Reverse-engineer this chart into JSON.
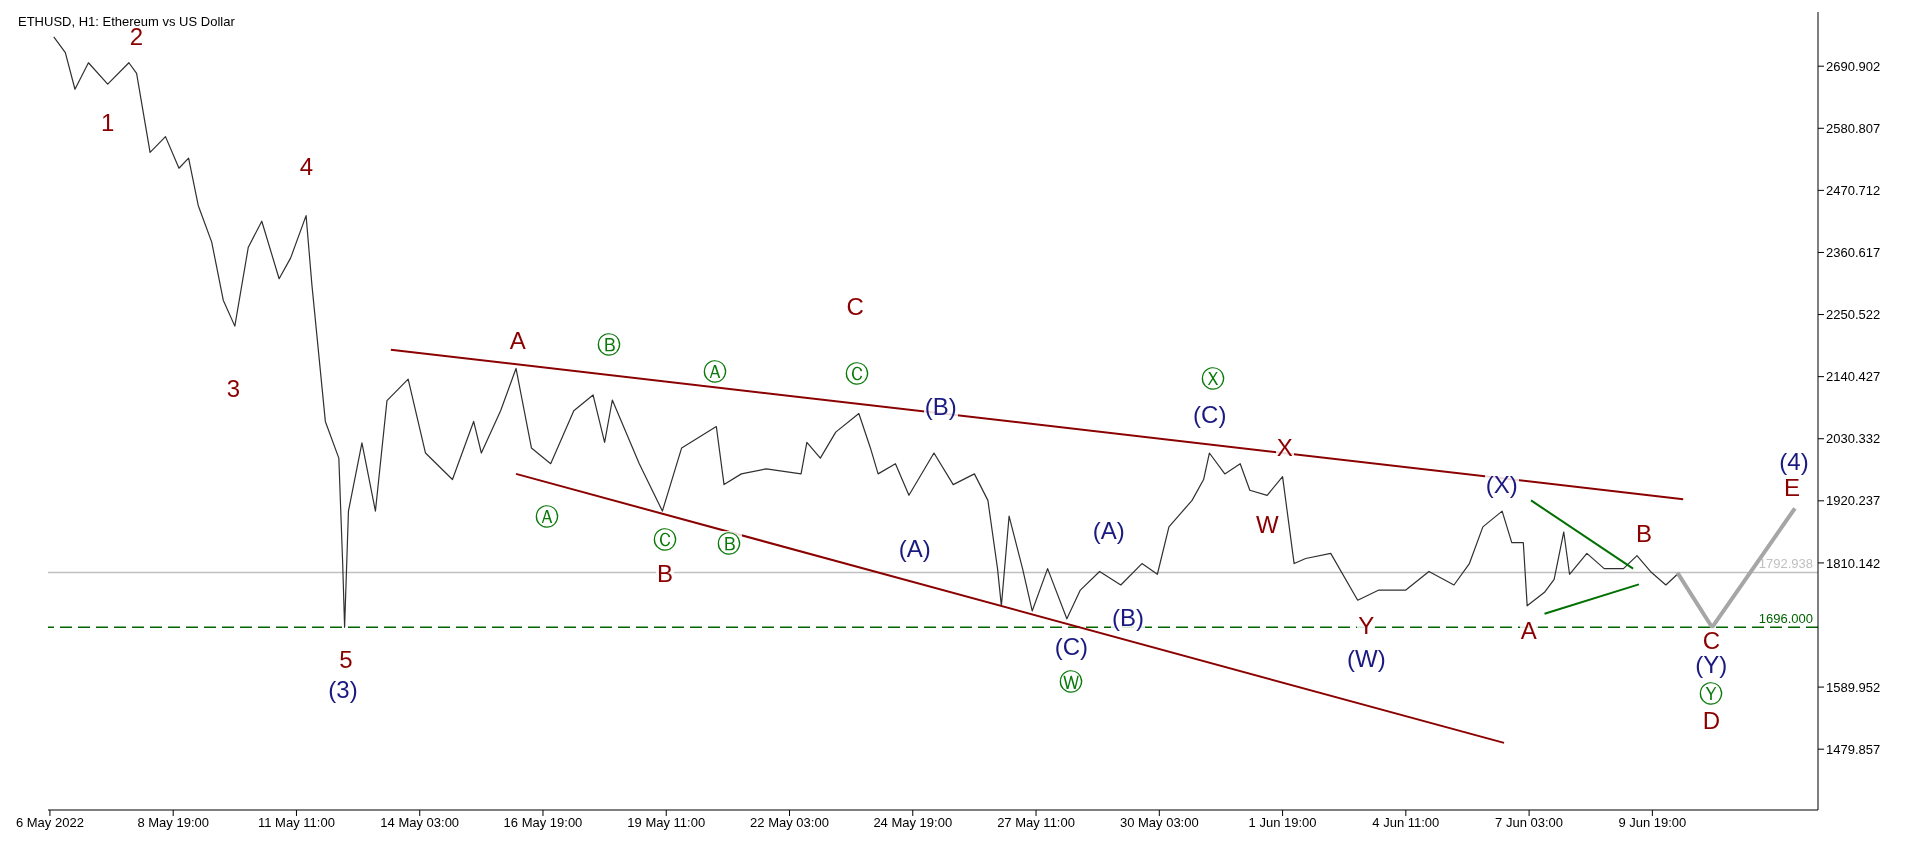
{
  "chart_data": {
    "type": "line",
    "title": "ETHUSD, H1:  Ethereum vs US Dollar",
    "xlim": [
      "2022-05-06T02:00",
      "2022-06-13T09:00"
    ],
    "xticks": [
      {
        "value": "2022-05-06T03:00",
        "label": "6 May 2022"
      },
      {
        "value": "2022-05-08T19:00",
        "label": "8 May 19:00"
      },
      {
        "value": "2022-05-11T11:00",
        "label": "11 May 11:00"
      },
      {
        "value": "2022-05-14T03:00",
        "label": "14 May 03:00"
      },
      {
        "value": "2022-05-16T19:00",
        "label": "16 May 19:00"
      },
      {
        "value": "2022-05-19T11:00",
        "label": "19 May 11:00"
      },
      {
        "value": "2022-05-22T03:00",
        "label": "22 May 03:00"
      },
      {
        "value": "2022-05-24T19:00",
        "label": "24 May 19:00"
      },
      {
        "value": "2022-05-27T11:00",
        "label": "27 May 11:00"
      },
      {
        "value": "2022-05-30T03:00",
        "label": "30 May 03:00"
      },
      {
        "value": "2022-06-01T19:00",
        "label": "1 Jun 19:00"
      },
      {
        "value": "2022-06-04T11:00",
        "label": "4 Jun 11:00"
      },
      {
        "value": "2022-06-07T03:00",
        "label": "7 Jun 03:00"
      },
      {
        "value": "2022-06-09T19:00",
        "label": "9 Jun 19:00"
      }
    ],
    "ylim": [
      1372,
      2787
    ],
    "yticks": [
      1479.857,
      1589.952,
      1810.142,
      1920.237,
      2030.332,
      2140.427,
      2250.522,
      2360.617,
      2470.712,
      2580.807,
      2690.902
    ],
    "marker": "none",
    "series": [
      {
        "color": "#303030",
        "x": [
          "2022-05-06T05:00",
          "2022-05-06T11:00",
          "2022-05-06T16:00",
          "2022-05-06T23:00",
          "2022-05-07T09:00",
          "2022-05-07T20:00",
          "2022-05-08T00:00",
          "2022-05-08T07:00",
          "2022-05-08T15:00",
          "2022-05-08T22:00",
          "2022-05-09T03:00",
          "2022-05-09T08:00",
          "2022-05-09T15:00",
          "2022-05-09T21:00",
          "2022-05-10T03:00",
          "2022-05-10T10:00",
          "2022-05-10T17:00",
          "2022-05-11T02:00",
          "2022-05-11T08:00",
          "2022-05-11T16:00",
          "2022-05-11T19:00",
          "2022-05-12T02:00",
          "2022-05-12T09:00",
          "2022-05-12T11:00",
          "2022-05-12T12:00",
          "2022-05-12T14:00",
          "2022-05-12T21:00",
          "2022-05-13T04:00",
          "2022-05-13T10:00",
          "2022-05-13T21:00",
          "2022-05-14T06:00",
          "2022-05-14T20:00",
          "2022-05-15T07:00",
          "2022-05-15T11:00",
          "2022-05-15T21:00",
          "2022-05-16T05:00",
          "2022-05-16T13:00",
          "2022-05-16T23:00",
          "2022-05-17T11:00",
          "2022-05-17T21:00",
          "2022-05-18T03:00",
          "2022-05-18T07:00",
          "2022-05-18T21:00",
          "2022-05-19T09:00",
          "2022-05-19T19:00",
          "2022-05-20T13:00",
          "2022-05-20T17:00",
          "2022-05-21T02:00",
          "2022-05-21T15:00",
          "2022-05-22T09:00",
          "2022-05-22T12:00",
          "2022-05-22T19:00",
          "2022-05-23T03:00",
          "2022-05-23T15:00",
          "2022-05-23T21:00",
          "2022-05-24T01:00",
          "2022-05-24T10:00",
          "2022-05-24T17:00",
          "2022-05-25T06:00",
          "2022-05-25T16:00",
          "2022-05-26T03:00",
          "2022-05-26T10:00",
          "2022-05-26T15:00",
          "2022-05-26T17:00",
          "2022-05-26T21:00",
          "2022-05-27T04:00",
          "2022-05-27T09:00",
          "2022-05-27T17:00",
          "2022-05-28T03:00",
          "2022-05-28T10:00",
          "2022-05-28T20:00",
          "2022-05-29T07:00",
          "2022-05-29T18:00",
          "2022-05-30T02:00",
          "2022-05-30T08:00",
          "2022-05-30T20:00",
          "2022-05-31T02:00",
          "2022-05-31T05:00",
          "2022-05-31T13:00",
          "2022-05-31T21:00",
          "2022-06-01T02:00",
          "2022-06-01T11:00",
          "2022-06-01T19:00",
          "2022-06-02T01:00",
          "2022-06-02T07:00",
          "2022-06-02T20:00",
          "2022-06-03T10:00",
          "2022-06-03T21:00",
          "2022-06-04T11:00",
          "2022-06-04T23:00",
          "2022-06-05T12:00",
          "2022-06-05T20:00",
          "2022-06-06T03:00",
          "2022-06-06T13:00",
          "2022-06-06T18:00",
          "2022-06-07T00:00",
          "2022-06-07T02:00",
          "2022-06-07T11:00",
          "2022-06-07T16:00",
          "2022-06-07T21:00",
          "2022-06-08T00:00",
          "2022-06-08T09:00",
          "2022-06-08T18:00",
          "2022-06-09T04:00",
          "2022-06-09T11:00",
          "2022-06-09T18:00",
          "2022-06-10T02:00",
          "2022-06-10T08:00"
        ],
        "values": [
          2743,
          2715,
          2650,
          2697,
          2659,
          2697,
          2678,
          2538,
          2566,
          2510,
          2528,
          2444,
          2379,
          2276,
          2230,
          2370,
          2416,
          2314,
          2351,
          2426,
          2304,
          2061,
          1996,
          1809,
          1696,
          1902,
          2023,
          1902,
          2098,
          2136,
          2005,
          1958,
          2061,
          2005,
          2080,
          2155,
          2014,
          1986,
          2080,
          2108,
          2024,
          2099,
          1986,
          1902,
          2014,
          2052,
          1949,
          1968,
          1977,
          1968,
          2024,
          1996,
          2042,
          2075,
          2014,
          1968,
          1986,
          1930,
          2005,
          1949,
          1968,
          1921,
          1800,
          1734,
          1893,
          1800,
          1725,
          1800,
          1711,
          1762,
          1795,
          1771,
          1809,
          1790,
          1874,
          1921,
          1958,
          2005,
          1968,
          1986,
          1939,
          1930,
          1963,
          1809,
          1818,
          1827,
          1744,
          1762,
          1762,
          1795,
          1771,
          1809,
          1874,
          1902,
          1846,
          1846,
          1734,
          1758,
          1781,
          1865,
          1790,
          1827,
          1800,
          1800,
          1823,
          1795,
          1771,
          1790
        ]
      },
      {
        "color": "#8b0000",
        "x": [
          "2022-05-13T12:00",
          "2022-06-10T11:00"
        ],
        "values": [
          2188,
          1923
        ]
      },
      {
        "color": "#8b0000",
        "x": [
          "2022-05-16T05:00",
          "2022-06-06T14:00"
        ],
        "values": [
          1968,
          1491
        ]
      },
      {
        "color": "#007000",
        "x": [
          "2022-06-07T04:00",
          "2022-06-09T09:00"
        ],
        "values": [
          1921,
          1800
        ]
      },
      {
        "color": "#007000",
        "x": [
          "2022-06-07T11:00",
          "2022-06-09T12:00"
        ],
        "values": [
          1720,
          1772
        ]
      },
      {
        "color": "#a6a6a6",
        "x": [
          "2022-06-10T08:00",
          "2022-06-11T02:00",
          "2022-06-12T21:00"
        ],
        "values": [
          1793,
          1696,
          1907
        ]
      }
    ],
    "ref_lines": [
      {
        "axis": "y",
        "value": 1696,
        "label": "1696.000",
        "color": "#006400",
        "line_style": "dashed"
      },
      {
        "axis": "y",
        "value": 1792.938,
        "label": "1792.938",
        "color": "#c0c0c0",
        "line_style": "solid"
      }
    ],
    "annotations": [
      "2",
      "1",
      "4",
      "3",
      "5",
      "(3)",
      "A",
      "Ⓑ",
      "Ⓐ",
      "Ⓒ",
      "B",
      "Ⓑ",
      "Ⓐ",
      "C",
      "Ⓒ",
      "(B)",
      "(A)",
      "(A)",
      "(B)",
      "(C)",
      "Ⓦ",
      "Ⓧ",
      "(C)",
      "X",
      "W",
      "Y",
      "(W)",
      "(X)",
      "A",
      "B",
      "C",
      "(Y)",
      "Ⓨ",
      "D",
      "(4)",
      "E"
    ]
  }
}
